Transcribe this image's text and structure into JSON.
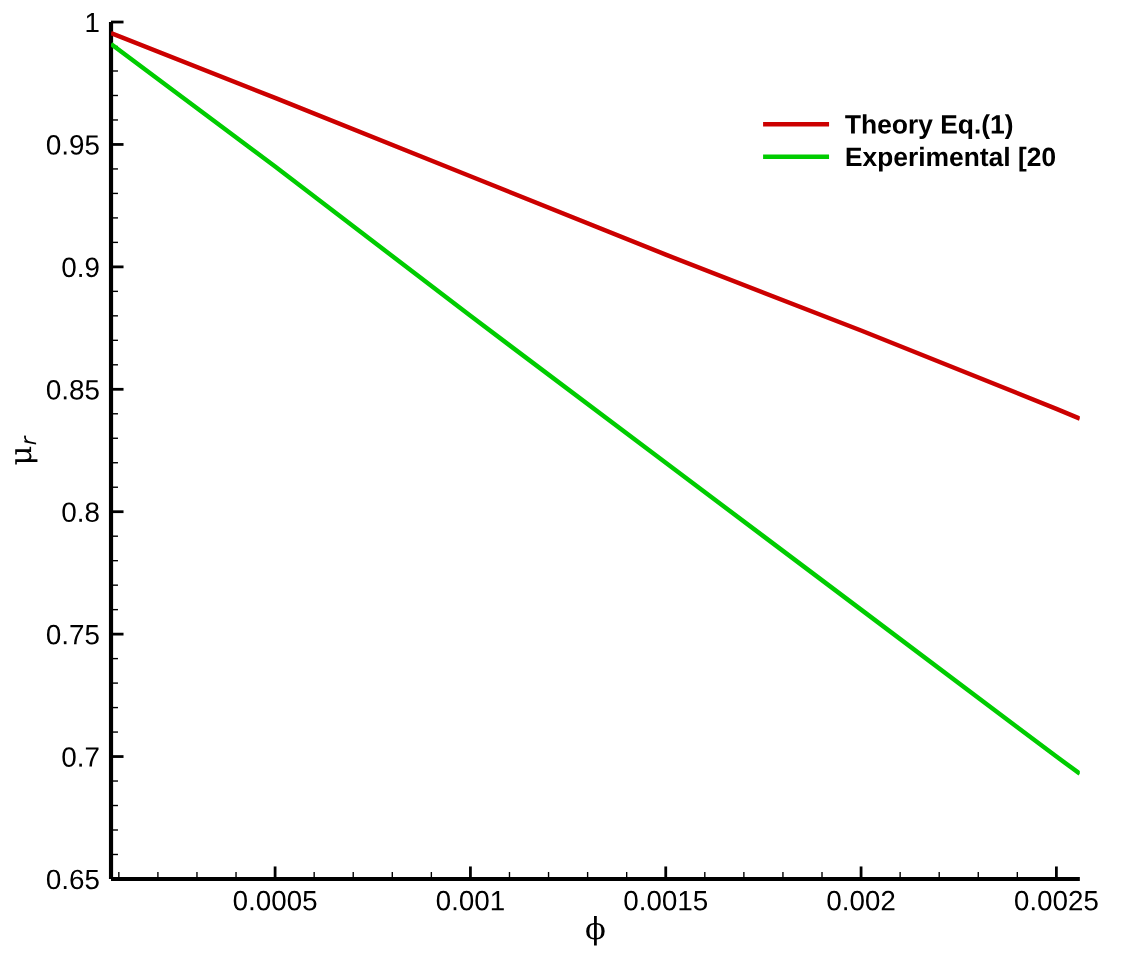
{
  "chart_data": {
    "type": "line",
    "xlabel": "ϕ",
    "ylabel": "μ$_{r}$",
    "xlim": [
      8e-05,
      0.00256
    ],
    "ylim": [
      0.65,
      1
    ],
    "xticks": [
      {
        "value": 0.0001,
        "label": null
      },
      {
        "value": 0.0002,
        "label": null
      },
      {
        "value": 0.0003,
        "label": null
      },
      {
        "value": 0.0004,
        "label": null
      },
      0.0005,
      {
        "value": 0.0006,
        "label": null
      },
      {
        "value": 0.0007,
        "label": null
      },
      {
        "value": 0.0008,
        "label": null
      },
      {
        "value": 0.0009,
        "label": null
      },
      0.001,
      {
        "value": 0.0011,
        "label": null
      },
      {
        "value": 0.0012,
        "label": null
      },
      {
        "value": 0.0013,
        "label": null
      },
      {
        "value": 0.0014,
        "label": null
      },
      0.0015,
      {
        "value": 0.0016,
        "label": null
      },
      {
        "value": 0.0017,
        "label": null
      },
      {
        "value": 0.0018,
        "label": null
      },
      {
        "value": 0.0019,
        "label": null
      },
      0.002,
      {
        "value": 0.0021,
        "label": null
      },
      {
        "value": 0.0022,
        "label": null
      },
      {
        "value": 0.0023,
        "label": null
      },
      {
        "value": 0.0024,
        "label": null
      },
      0.0025
    ],
    "yticks": [
      0.65,
      {
        "value": 0.66,
        "label": null
      },
      {
        "value": 0.67,
        "label": null
      },
      {
        "value": 0.68,
        "label": null
      },
      {
        "value": 0.69,
        "label": null
      },
      0.7,
      {
        "value": 0.71,
        "label": null
      },
      {
        "value": 0.72,
        "label": null
      },
      {
        "value": 0.73,
        "label": null
      },
      {
        "value": 0.74,
        "label": null
      },
      0.75,
      {
        "value": 0.76,
        "label": null
      },
      {
        "value": 0.77,
        "label": null
      },
      {
        "value": 0.78,
        "label": null
      },
      {
        "value": 0.79,
        "label": null
      },
      0.8,
      {
        "value": 0.81,
        "label": null
      },
      {
        "value": 0.82,
        "label": null
      },
      {
        "value": 0.83,
        "label": null
      },
      {
        "value": 0.84,
        "label": null
      },
      0.85,
      {
        "value": 0.86,
        "label": null
      },
      {
        "value": 0.87,
        "label": null
      },
      {
        "value": 0.88,
        "label": null
      },
      {
        "value": 0.89,
        "label": null
      },
      0.9,
      {
        "value": 0.91,
        "label": null
      },
      {
        "value": 0.92,
        "label": null
      },
      {
        "value": 0.93,
        "label": null
      },
      {
        "value": 0.94,
        "label": null
      },
      0.95,
      {
        "value": 0.96,
        "label": null
      },
      {
        "value": 0.97,
        "label": null
      },
      {
        "value": 0.98,
        "label": null
      },
      {
        "value": 0.99,
        "label": null
      },
      1
    ],
    "x": [
      8e-05,
      0.0005,
      0.001,
      0.0015,
      0.002,
      0.0025,
      0.00256
    ],
    "series": [
      {
        "name": "Theory Eq.(1)",
        "color": "#cc0000",
        "values": [
          0.9955,
          0.969,
          0.937,
          0.905,
          0.874,
          0.842,
          0.838
        ]
      },
      {
        "name": "Experimental [20",
        "color": "#00cc00",
        "values": [
          0.991,
          0.941,
          0.88,
          0.82,
          0.76,
          0.7,
          0.693
        ]
      }
    ],
    "legend": "top right",
    "grid": false,
    "marker": "none",
    "line_style": "solid"
  }
}
